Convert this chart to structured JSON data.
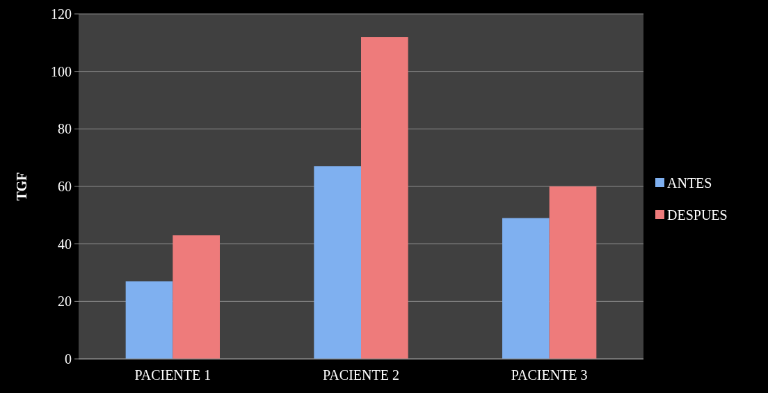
{
  "chart_data": {
    "type": "bar",
    "ylabel": "TGF",
    "categories": [
      "PACIENTE 1",
      "PACIENTE 2",
      "PACIENTE 3"
    ],
    "series": [
      {
        "name": "ANTES",
        "color": "#7fb0f0",
        "values": [
          27,
          67,
          49
        ]
      },
      {
        "name": "DESPUES",
        "color": "#ee7b7b",
        "values": [
          43,
          112,
          60
        ]
      }
    ],
    "ylim": [
      0,
      120
    ],
    "yticks": [
      0,
      20,
      40,
      60,
      80,
      100,
      120
    ],
    "grid": "y",
    "legend": "right"
  }
}
